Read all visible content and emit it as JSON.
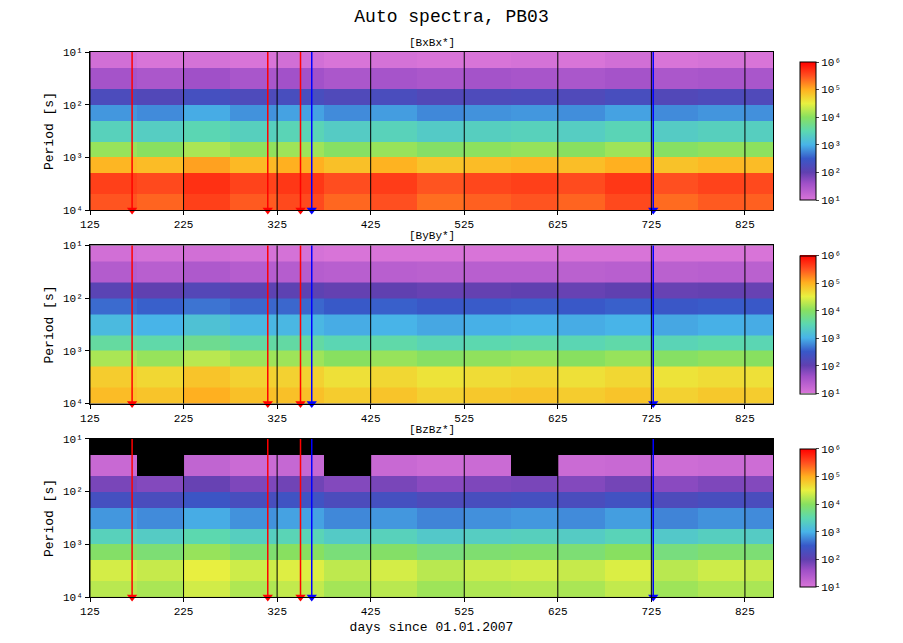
{
  "chart_data": {
    "type": "heatmap",
    "title": "Auto spectra, PB03",
    "xlabel": "days since 01.01.2007",
    "ylabel": "Period [s]",
    "log": "y",
    "grid": true,
    "xlim": [
      125,
      855
    ],
    "xticks": [
      125,
      225,
      325,
      425,
      525,
      625,
      725,
      825
    ],
    "ylim": [
      10,
      10000
    ],
    "yticks": [
      {
        "value": 10,
        "label": "10¹"
      },
      {
        "value": 100,
        "label": "10²"
      },
      {
        "value": 1000,
        "label": "10³"
      },
      {
        "value": 10000,
        "label": "10⁴"
      }
    ],
    "x_edges": [
      125,
      175,
      225,
      275,
      325,
      375,
      425,
      475,
      525,
      575,
      625,
      675,
      725,
      775,
      825,
      855
    ],
    "y_edges": [
      10,
      20,
      50,
      100,
      200,
      500,
      1000,
      2000,
      5000,
      10000
    ],
    "colorbar": {
      "log": true,
      "range": [
        10,
        1000000
      ],
      "ticks": [
        {
          "value": 10,
          "label": "10¹"
        },
        {
          "value": 100,
          "label": "10²"
        },
        {
          "value": 1000,
          "label": "10³"
        },
        {
          "value": 10000,
          "label": "10⁴"
        },
        {
          "value": 100000,
          "label": "10⁵"
        },
        {
          "value": 1000000,
          "label": "10⁶"
        }
      ]
    },
    "events": [
      {
        "x": 170,
        "color": "red"
      },
      {
        "x": 315,
        "color": "red"
      },
      {
        "x": 350,
        "color": "red"
      },
      {
        "x": 362,
        "color": "blue"
      },
      {
        "x": 727,
        "color": "blue"
      }
    ],
    "panels": [
      {
        "title": "[BxBx*]",
        "z": [
          [
            12,
            10,
            11,
            10,
            12,
            10,
            11,
            10,
            10,
            11,
            10,
            12,
            10,
            11,
            10
          ],
          [
            35,
            30,
            40,
            32,
            38,
            30,
            34,
            30,
            36,
            33,
            31,
            35,
            30,
            33,
            32
          ],
          [
            180,
            150,
            220,
            170,
            200,
            160,
            190,
            150,
            170,
            180,
            160,
            200,
            150,
            170,
            160
          ],
          [
            700,
            600,
            900,
            650,
            800,
            600,
            750,
            580,
            650,
            700,
            620,
            800,
            600,
            680,
            640
          ],
          [
            2500,
            2200,
            3000,
            2400,
            2800,
            2100,
            2600,
            2000,
            2300,
            2500,
            2200,
            2800,
            2100,
            2400,
            2300
          ],
          [
            12000,
            10000,
            15000,
            11000,
            13000,
            9500,
            12000,
            9000,
            10500,
            11500,
            10000,
            13000,
            9500,
            11000,
            10500
          ],
          [
            90000,
            80000,
            120000,
            85000,
            100000,
            75000,
            95000,
            70000,
            80000,
            90000,
            78000,
            100000,
            72000,
            85000,
            80000
          ],
          [
            400000,
            350000,
            500000,
            380000,
            450000,
            330000,
            420000,
            300000,
            360000,
            400000,
            340000,
            450000,
            320000,
            380000,
            350000
          ],
          [
            300000,
            250000,
            400000,
            280000,
            350000,
            240000,
            320000,
            220000,
            260000,
            300000,
            250000,
            350000,
            230000,
            280000,
            260000
          ]
        ]
      },
      {
        "title": "[ByBy*]",
        "z": [
          [
            12,
            11,
            12,
            11,
            11,
            10,
            10,
            10,
            10,
            10,
            10,
            10,
            10,
            10,
            10
          ],
          [
            25,
            22,
            28,
            24,
            24,
            22,
            22,
            21,
            22,
            22,
            21,
            22,
            21,
            22,
            21
          ],
          [
            120,
            100,
            140,
            110,
            110,
            95,
            100,
            90,
            95,
            100,
            90,
            100,
            90,
            95,
            90
          ],
          [
            400,
            350,
            450,
            380,
            380,
            320,
            350,
            300,
            330,
            350,
            310,
            350,
            300,
            330,
            310
          ],
          [
            1200,
            1000,
            1500,
            1100,
            1100,
            900,
            1000,
            850,
            950,
            1000,
            900,
            1000,
            850,
            950,
            900
          ],
          [
            4000,
            3500,
            5000,
            3800,
            3800,
            3000,
            3500,
            2800,
            3200,
            3500,
            3000,
            3500,
            2800,
            3200,
            3000
          ],
          [
            15000,
            12000,
            18000,
            13000,
            13000,
            10000,
            12000,
            9500,
            11000,
            12000,
            10000,
            12000,
            9500,
            11000,
            10000
          ],
          [
            60000,
            50000,
            70000,
            55000,
            55000,
            42000,
            50000,
            40000,
            45000,
            50000,
            42000,
            50000,
            40000,
            45000,
            42000
          ],
          [
            80000,
            70000,
            100000,
            75000,
            75000,
            60000,
            70000,
            55000,
            65000,
            70000,
            60000,
            70000,
            55000,
            65000,
            60000
          ]
        ]
      },
      {
        "title": "[BzBz*]",
        "z": [
          [
            null,
            null,
            null,
            null,
            null,
            null,
            null,
            null,
            null,
            null,
            null,
            null,
            null,
            null,
            null
          ],
          [
            15,
            null,
            18,
            14,
            16,
            null,
            15,
            13,
            14,
            null,
            14,
            15,
            13,
            14,
            13
          ],
          [
            70,
            60,
            90,
            65,
            80,
            60,
            70,
            55,
            65,
            70,
            60,
            75,
            55,
            65,
            60
          ],
          [
            220,
            190,
            280,
            200,
            250,
            180,
            220,
            170,
            200,
            220,
            190,
            240,
            170,
            200,
            190
          ],
          [
            700,
            600,
            900,
            650,
            800,
            580,
            700,
            550,
            640,
            700,
            600,
            760,
            550,
            650,
            600
          ],
          [
            2500,
            2100,
            3200,
            2300,
            2800,
            2000,
            2500,
            1900,
            2200,
            2400,
            2100,
            2700,
            1900,
            2300,
            2100
          ],
          [
            9000,
            7500,
            12000,
            8000,
            10000,
            7000,
            9000,
            6500,
            8000,
            8500,
            7500,
            10000,
            6500,
            8000,
            7500
          ],
          [
            25000,
            21000,
            32000,
            23000,
            28000,
            19000,
            25000,
            18000,
            22000,
            24000,
            21000,
            27000,
            18000,
            23000,
            21000
          ],
          [
            18000,
            15000,
            24000,
            16000,
            20000,
            14000,
            18000,
            13000,
            16000,
            17000,
            15000,
            20000,
            13000,
            16000,
            15000
          ]
        ]
      }
    ]
  }
}
